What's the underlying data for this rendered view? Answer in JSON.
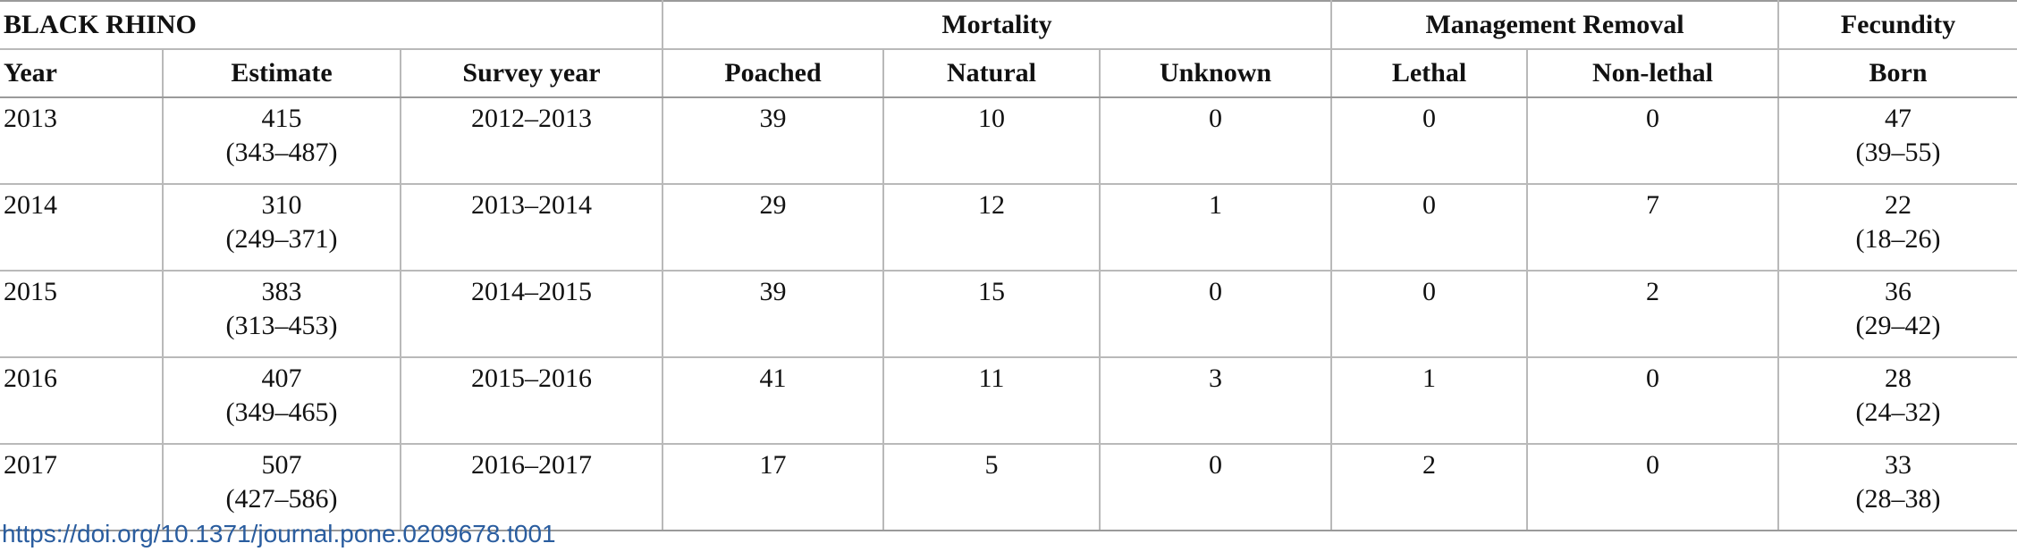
{
  "table": {
    "title": "BLACK RHINO",
    "groups": {
      "mortality": "Mortality",
      "management": "Management Removal",
      "fecundity": "Fecundity"
    },
    "columns": [
      "Year",
      "Estimate",
      "Survey year",
      "Poached",
      "Natural",
      "Unknown",
      "Lethal",
      "Non-lethal",
      "Born"
    ],
    "rows": [
      {
        "year": "2013",
        "estimate": "415",
        "estimate_ci": "(343–487)",
        "survey_year": "2012–2013",
        "poached": "39",
        "natural": "10",
        "unknown": "0",
        "lethal": "0",
        "non_lethal": "0",
        "born": "47",
        "born_ci": "(39–55)"
      },
      {
        "year": "2014",
        "estimate": "310",
        "estimate_ci": "(249–371)",
        "survey_year": "2013–2014",
        "poached": "29",
        "natural": "12",
        "unknown": "1",
        "lethal": "0",
        "non_lethal": "7",
        "born": "22",
        "born_ci": "(18–26)"
      },
      {
        "year": "2015",
        "estimate": "383",
        "estimate_ci": "(313–453)",
        "survey_year": "2014–2015",
        "poached": "39",
        "natural": "15",
        "unknown": "0",
        "lethal": "0",
        "non_lethal": "2",
        "born": "36",
        "born_ci": "(29–42)"
      },
      {
        "year": "2016",
        "estimate": "407",
        "estimate_ci": "(349–465)",
        "survey_year": "2015–2016",
        "poached": "41",
        "natural": "11",
        "unknown": "3",
        "lethal": "1",
        "non_lethal": "0",
        "born": "28",
        "born_ci": "(24–32)"
      },
      {
        "year": "2017",
        "estimate": "507",
        "estimate_ci": "(427–586)",
        "survey_year": "2016–2017",
        "poached": "17",
        "natural": "5",
        "unknown": "0",
        "lethal": "2",
        "non_lethal": "0",
        "born": "33",
        "born_ci": "(28–38)"
      }
    ]
  },
  "doi_link": "https://doi.org/10.1371/journal.pone.0209678.t001",
  "colors": {
    "link": "#2a5d9f",
    "rule": "#b9b9b9",
    "text": "#111111"
  }
}
